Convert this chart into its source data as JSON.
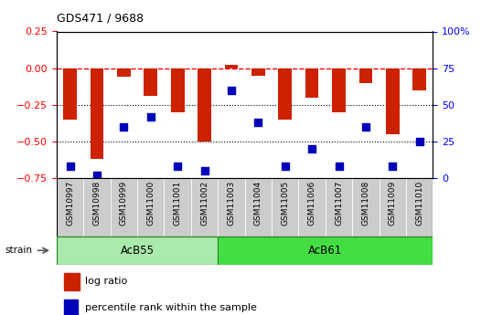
{
  "title": "GDS471 / 9688",
  "samples": [
    "GSM10997",
    "GSM10998",
    "GSM10999",
    "GSM11000",
    "GSM11001",
    "GSM11002",
    "GSM11003",
    "GSM11004",
    "GSM11005",
    "GSM11006",
    "GSM11007",
    "GSM11008",
    "GSM11009",
    "GSM11010"
  ],
  "log_ratio": [
    -0.35,
    -0.62,
    -0.06,
    -0.19,
    -0.3,
    -0.5,
    0.02,
    -0.05,
    -0.35,
    -0.2,
    -0.3,
    -0.1,
    -0.45,
    -0.15
  ],
  "percentile_rank": [
    8,
    2,
    35,
    42,
    8,
    5,
    60,
    38,
    8,
    20,
    8,
    35,
    8,
    25
  ],
  "groups": [
    {
      "label": "AcB55",
      "start": 0,
      "end": 6,
      "color": "#aaeaaa"
    },
    {
      "label": "AcB61",
      "start": 6,
      "end": 14,
      "color": "#44dd44"
    }
  ],
  "ylim_left": [
    -0.75,
    0.25
  ],
  "ylim_right": [
    0,
    100
  ],
  "yticks_left": [
    -0.75,
    -0.5,
    -0.25,
    0.0,
    0.25
  ],
  "yticks_right": [
    0,
    25,
    50,
    75,
    100
  ],
  "dotted_lines": [
    -0.25,
    -0.5
  ],
  "bar_color": "#CC2200",
  "dot_color": "#0000BB",
  "bar_width": 0.5,
  "dot_size": 40,
  "strain_label": "strain",
  "legend_items": [
    "log ratio",
    "percentile rank within the sample"
  ],
  "sample_label_bg": "#cccccc",
  "n_acb55": 6,
  "n_acb61": 8
}
